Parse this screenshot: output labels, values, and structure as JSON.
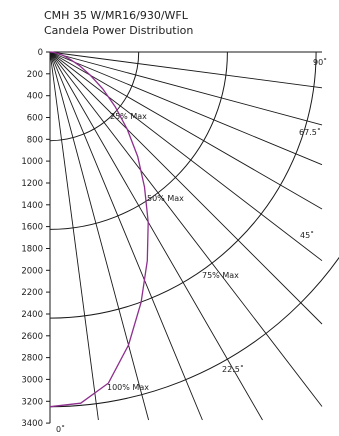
{
  "title_line1": "CMH 35 W/MR16/930/WFL",
  "title_line2": "Candela Power Distribution",
  "chart_data": {
    "type": "polar-line",
    "title": "CMH 35 W/MR16/930/WFL Candela Power Distribution",
    "y_tick_labels": [
      "0",
      "200",
      "400",
      "600",
      "800",
      "1000",
      "1200",
      "1400",
      "1600",
      "1800",
      "2000",
      "2200",
      "2400",
      "2600",
      "2800",
      "3000",
      "3200",
      "3400"
    ],
    "radial_range": [
      0,
      3400
    ],
    "max_candela": 3250,
    "ring_labels": [
      {
        "label": "25% Max",
        "fraction": 0.25
      },
      {
        "label": "50% Max",
        "fraction": 0.5
      },
      {
        "label": "75% Max",
        "fraction": 0.75
      },
      {
        "label": "100% Max",
        "fraction": 1.0
      }
    ],
    "angle_labels": [
      {
        "label": "0˚",
        "deg": 0
      },
      {
        "label": "22.5˚",
        "deg": 22.5
      },
      {
        "label": "45˚",
        "deg": 45
      },
      {
        "label": "67.5˚",
        "deg": 67.5
      },
      {
        "label": "90˚",
        "deg": 90
      }
    ],
    "radial_line_angles": [
      0,
      7.5,
      15,
      22.5,
      30,
      37.5,
      45,
      52.5,
      60,
      67.5,
      75,
      82.5,
      90
    ],
    "line_color": "#8e2f8e",
    "series": [
      {
        "name": "",
        "angle_deg": [
          0,
          5,
          10,
          15,
          20,
          25,
          30,
          35,
          40,
          45,
          50,
          55,
          60,
          65,
          70,
          75,
          80,
          85,
          90
        ],
        "candela": [
          3250,
          3230,
          3080,
          2780,
          2440,
          2110,
          1800,
          1510,
          1250,
          1000,
          780,
          590,
          430,
          300,
          200,
          125,
          65,
          25,
          0
        ]
      }
    ]
  }
}
